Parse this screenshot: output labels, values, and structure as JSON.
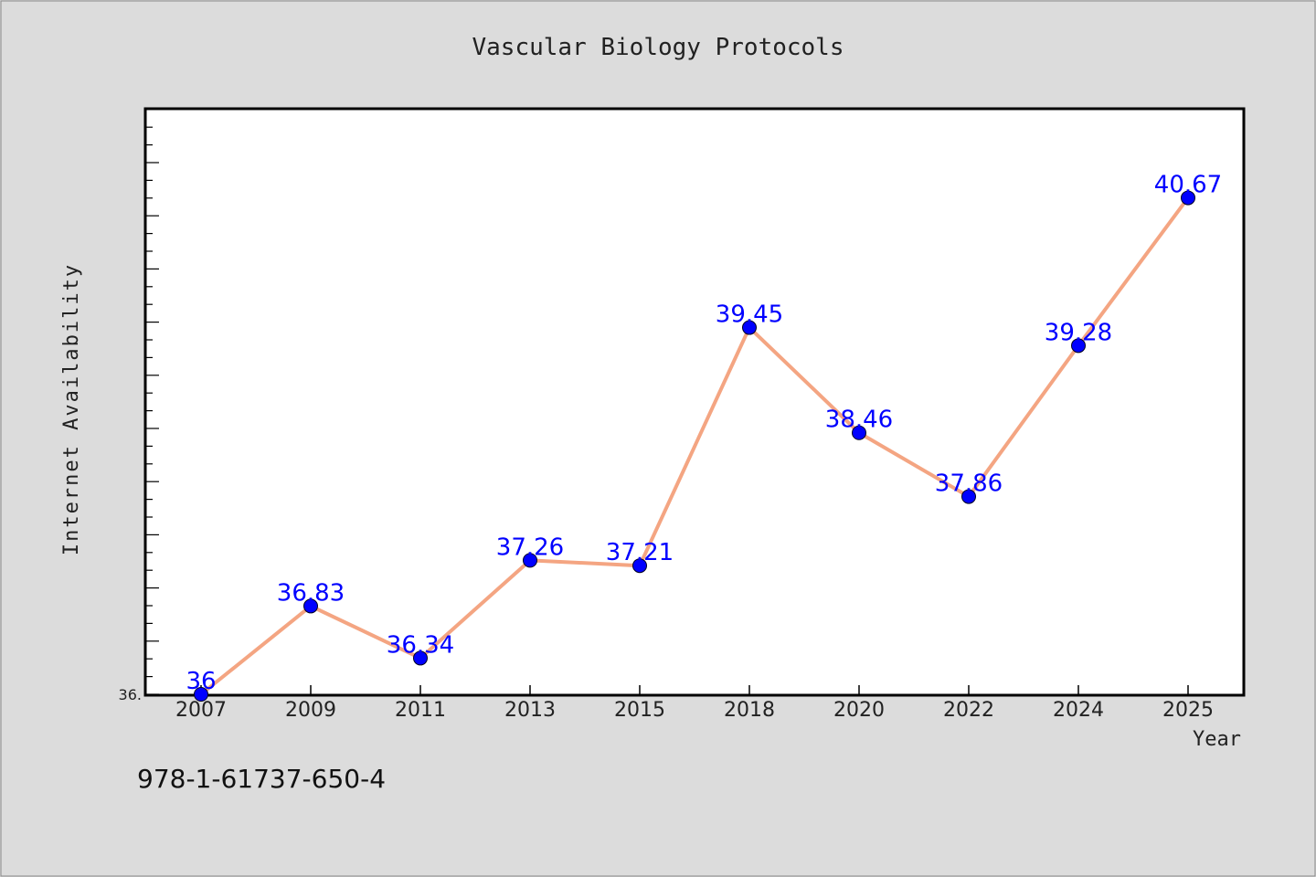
{
  "chart_data": {
    "type": "line",
    "title": "Vascular Biology Protocols",
    "xlabel": "Year",
    "ylabel": "Internet Availability",
    "categories": [
      "2007",
      "2009",
      "2011",
      "2013",
      "2015",
      "2018",
      "2020",
      "2022",
      "2024",
      "2025"
    ],
    "series": [
      {
        "values": [
          36,
          36.83,
          36.34,
          37.26,
          37.21,
          39.45,
          38.46,
          37.86,
          39.28,
          40.67
        ]
      }
    ],
    "data_labels": [
      "36",
      "36.83",
      "36.34",
      "37.26",
      "37.21",
      "39.45",
      "38.46",
      "37.86",
      "39.28",
      "40.67"
    ],
    "ylim": [
      36,
      41.5
    ],
    "y_tick_labels": [
      "36."
    ],
    "grid": false,
    "colors": {
      "line": "#f4a582",
      "marker": "#0000ff",
      "label": "#0000ff",
      "background": "#dcdcdc",
      "plot_background": "#ffffff"
    }
  },
  "footer": {
    "isbn": "978-1-61737-650-4"
  }
}
